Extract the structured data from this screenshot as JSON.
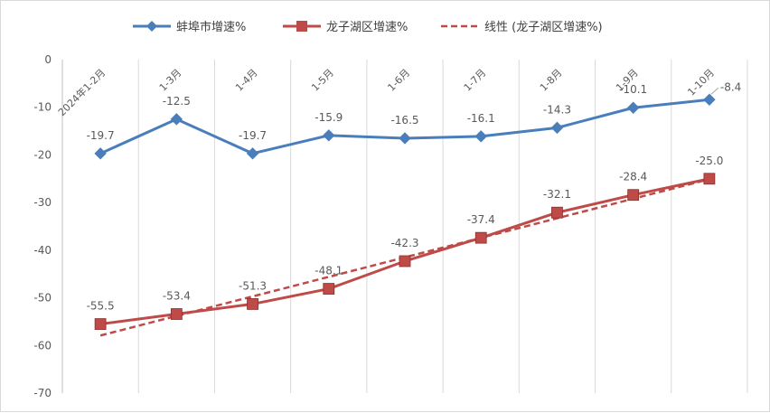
{
  "chart_data": {
    "type": "line",
    "categories": [
      "2024年1-2月",
      "1-3月",
      "1-4月",
      "1-5月",
      "1-6月",
      "1-7月",
      "1-8月",
      "1-9月",
      "1-10月"
    ],
    "ylim": [
      -70,
      0
    ],
    "yticks": [
      0,
      -10,
      -20,
      -30,
      -40,
      -50,
      -60,
      -70
    ],
    "grid": "vertical",
    "legend_position": "top",
    "series": [
      {
        "name": "蚌埠市增速%",
        "color": "#4A7EBB",
        "marker": "diamond",
        "values": [
          -19.7,
          -12.5,
          -19.7,
          -15.9,
          -16.5,
          -16.1,
          -14.3,
          -10.1,
          -8.4
        ],
        "labels": [
          "-19.7",
          "-12.5",
          "-19.7",
          "-15.9",
          "-16.5",
          "-16.1",
          "-14.3",
          "-10.1",
          "-8.4"
        ]
      },
      {
        "name": "龙子湖区增速%",
        "color": "#BE4B48",
        "marker": "square",
        "values": [
          -55.5,
          -53.4,
          -51.3,
          -48.1,
          -42.3,
          -37.4,
          -32.1,
          -28.4,
          -25.0
        ],
        "labels": [
          "-55.5",
          "-53.4",
          "-51.3",
          "-48.1",
          "-42.3",
          "-37.4",
          "-32.1",
          "-28.4",
          "-25.0"
        ]
      }
    ],
    "trendline": {
      "name": "线性 (龙子湖区增速%)",
      "color": "#BE4B48",
      "style": "dashed",
      "of_series": "龙子湖区增速%",
      "type": "linear"
    }
  }
}
